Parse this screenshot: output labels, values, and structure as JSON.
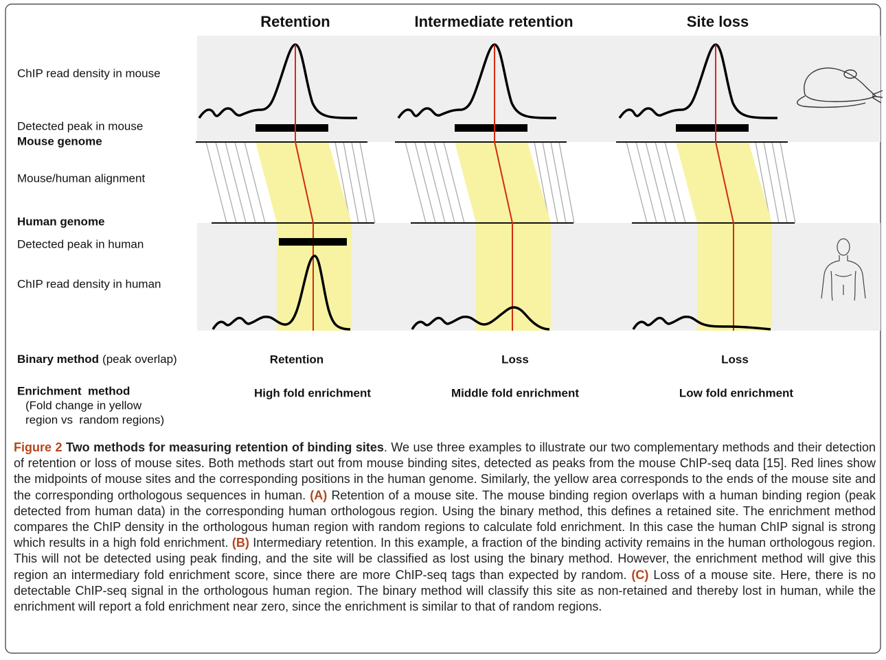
{
  "columns": [
    {
      "title": "Retention",
      "binary_result": "Retention",
      "enrichment_result": "High fold enrichment"
    },
    {
      "title": "Intermediate retention",
      "binary_result": "Loss",
      "enrichment_result": "Middle fold enrichment"
    },
    {
      "title": "Site loss",
      "binary_result": "Loss",
      "enrichment_result": "Low fold enrichment"
    }
  ],
  "row_labels": {
    "mouse_density": "ChIP read density in mouse",
    "mouse_peak": "Detected peak in mouse",
    "mouse_genome": "Mouse genome",
    "alignment": "Mouse/human alignment",
    "human_genome": "Human genome",
    "human_peak": "Detected peak in human",
    "human_density": "ChIP read density in human"
  },
  "methods": {
    "binary": {
      "name": "Binary method",
      "note": "(peak overlap)"
    },
    "enrichment": {
      "name": "Enrichment  method",
      "note": [
        "(Fold change in yellow",
        "region vs  random regions)"
      ]
    }
  },
  "caption": {
    "label": "Figure 2",
    "title": "Two methods for measuring retention of binding sites",
    "intro": ". We use three examples to illustrate our two complementary methods and their detection of retention or loss of mouse sites. Both methods start out from mouse binding sites, detected as peaks from the mouse ChIP-seq data [15]. Red lines show the midpoints of mouse sites and the corresponding positions in the human genome. Similarly, the yellow area corresponds to the ends of the mouse site and the corresponding orthologous sequences in human.",
    "parts": [
      {
        "label": "(A)",
        "text": "Retention of a mouse site. The mouse binding region overlaps with a human binding region (peak detected from human data) in the corresponding human orthologous region. Using the binary method, this defines a retained site. The enrichment method compares the ChIP density in the orthologous human region with random regions to calculate fold enrichment. In this case the human ChIP signal is strong which results in a high fold enrichment."
      },
      {
        "label": "(B)",
        "text": "Intermediary retention. In this example, a fraction of the binding activity remains in the human orthologous region. This will not be detected using peak finding, and the site will be classified as lost using the binary method. However, the enrichment method will give this region an intermediary fold enrichment score, since there are more ChIP-seq tags than expected by random."
      },
      {
        "label": "(C)",
        "text": "Loss of a mouse site. Here, there is no detectable ChIP-seq signal in the orthologous human region. The binary method will classify this site as non-retained and thereby lost in human, while the enrichment will report a fold enrichment near zero, since the enrichment is similar to that of random regions."
      }
    ]
  }
}
